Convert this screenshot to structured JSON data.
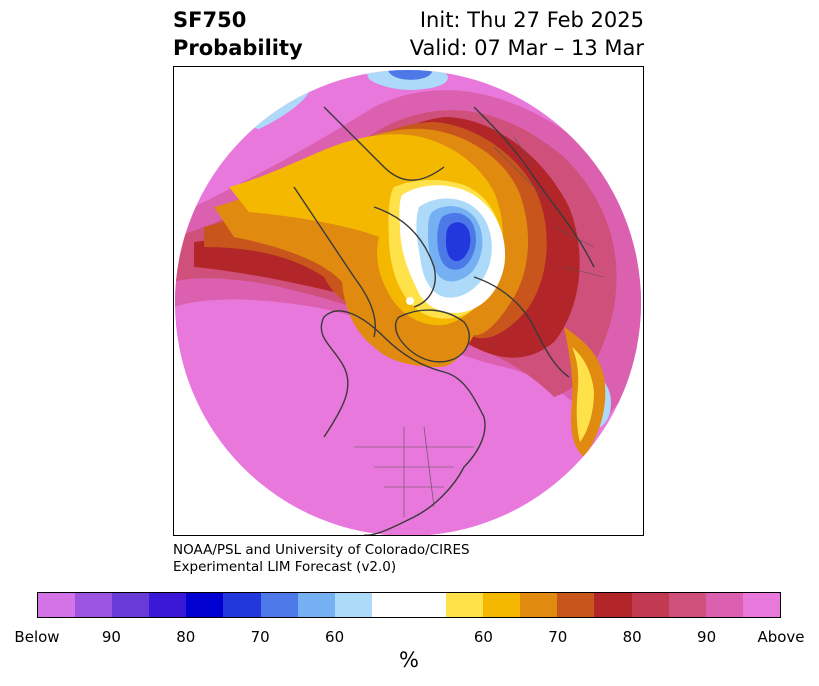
{
  "header": {
    "title_line1": "SF750",
    "title_line2": "Probability",
    "init": "Init: Thu 27 Feb 2025",
    "valid": "Valid: 07 Mar – 13 Mar"
  },
  "credit": {
    "line1": "NOAA/PSL and University of Colorado/CIRES",
    "line2": "Experimental LIM Forecast (v2.0)"
  },
  "colorbar": {
    "colors": [
      "#d473e8",
      "#9c55e0",
      "#6a3ad9",
      "#3a18d8",
      "#0000d0",
      "#2238dc",
      "#4c78e8",
      "#74b0f2",
      "#acdaf8",
      "#ffffff",
      "#ffffff",
      "#ffe14a",
      "#f4b800",
      "#e08a10",
      "#c8561c",
      "#b2262a",
      "#c23a52",
      "#d0507c",
      "#dc60b0",
      "#e878dc"
    ],
    "ticks": [
      "Below",
      "90",
      "80",
      "70",
      "60",
      "60",
      "70",
      "80",
      "90",
      "Above"
    ],
    "unit": "%"
  },
  "map": {
    "palette": {
      "above": "#e878dc",
      "p90": "#dc60b0",
      "p80": "#d0507c",
      "p75": "#c23a52",
      "p70": "#b2262a",
      "p65": "#c8561c",
      "p60": "#e08a10",
      "p55": "#f4b800",
      "p50": "#ffe14a",
      "neutral": "#ffffff",
      "b60": "#acdaf8",
      "b65": "#74b0f2",
      "b70": "#4c78e8",
      "b80": "#2238dc"
    }
  }
}
